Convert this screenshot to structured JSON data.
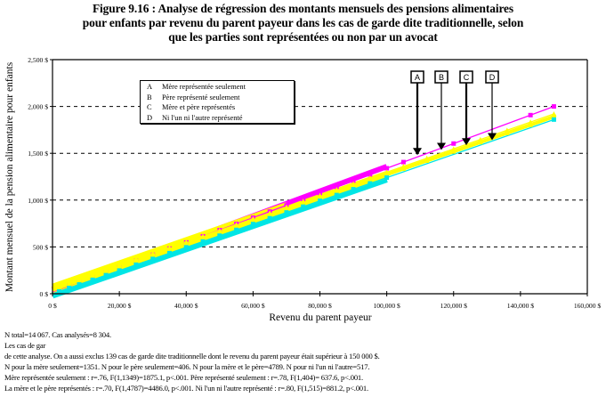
{
  "title": {
    "lines": [
      "Figure 9.16 : Analyse de régression des montants mensuels des pensions alimentaires",
      "pour enfants par revenu du parent payeur dans les cas de garde dite traditionnelle, selon",
      "que les parties sont représentées ou non par un avocat"
    ]
  },
  "legend": {
    "items": [
      {
        "key": "A",
        "label": "Mère représentée seulement"
      },
      {
        "key": "B",
        "label": "Père représenté seulement"
      },
      {
        "key": "C",
        "label": "Mère et père représentés"
      },
      {
        "key": "D",
        "label": "Ni l'un ni l'autre représenté"
      }
    ]
  },
  "notes": [
    "N total=14 067.  Cas analysés=8 304.",
    "Les cas de gar",
    "de cette analyse. On a aussi exclus 139 cas de garde dite traditionnelle dont le revenu du parent payeur était supérieur à 150 000 $.",
    "N pour la mère seulement=1351.  N pour le père seulement=406.  N pour la mère et le père=4789.  N pour ni l'un ni l'autre=517.",
    "Mère représentée seulement : r=.76, F(1,1349)=1875.1, p<.001.  Père représenté seulement : r=.78, F(1,404)= 637.6, p<.001.",
    "La mère et le père représentés : r=.70, F(1,4787)=4486.0, p<.001.  Ni l'un ni l'autre représenté : r=.80, F(1,515)=881.2, p<.001."
  ],
  "chart_data": {
    "type": "line",
    "title": "Figure 9.16 : Analyse de régression des montants mensuels des pensions alimentaires pour enfants par revenu du parent payeur dans les cas de garde dite traditionnelle, selon que les parties sont représentées ou non par un avocat",
    "xlabel": "Revenu du parent payeur",
    "ylabel": "Montant mensuel de la pension alimentaire pour enfants",
    "xlim": [
      0,
      160000
    ],
    "ylim": [
      0,
      2500
    ],
    "x_ticks": [
      0,
      20000,
      40000,
      60000,
      80000,
      100000,
      120000,
      140000,
      160000
    ],
    "x_tick_labels": [
      "0 $",
      "20,000 $",
      "40,000 $",
      "60,000 $",
      "80,000 $",
      "100,000 $",
      "120,000 $",
      "140,000 $",
      "160,000 $"
    ],
    "y_ticks": [
      0,
      500,
      1000,
      1500,
      2000,
      2500
    ],
    "y_tick_labels": [
      "0 $",
      "500 $",
      "1,000 $",
      "1,500 $",
      "2,000 $",
      "2,500 $"
    ],
    "grid": "horizontal dashed at y ticks",
    "legend_position": "upper-left inset box",
    "series": [
      {
        "name": "A - Mère représentée seulement",
        "color": "#ff00ff",
        "marker": "square",
        "x": [
          0,
          150000
        ],
        "y": [
          20,
          2000
        ]
      },
      {
        "name": "B - Père représenté seulement",
        "color": "#ffff00",
        "marker": "triangle",
        "x": [
          0,
          150000
        ],
        "y": [
          55,
          1920
        ]
      },
      {
        "name": "C - Mère et père représentés",
        "color": "#ffff00",
        "marker": "square",
        "x": [
          0,
          150000
        ],
        "y": [
          40,
          1890
        ]
      },
      {
        "name": "D - Ni l'un ni l'autre représenté",
        "color": "#00e5e5",
        "marker": "cross",
        "x": [
          0,
          150000
        ],
        "y": [
          0,
          1860
        ]
      }
    ],
    "annotations": [
      {
        "label": "A",
        "x": 109500,
        "y": 1480
      },
      {
        "label": "B",
        "x": 116000,
        "y": 1535
      },
      {
        "label": "C",
        "x": 123500,
        "y": 1585
      },
      {
        "label": "D",
        "x": 131500,
        "y": 1640
      }
    ]
  }
}
